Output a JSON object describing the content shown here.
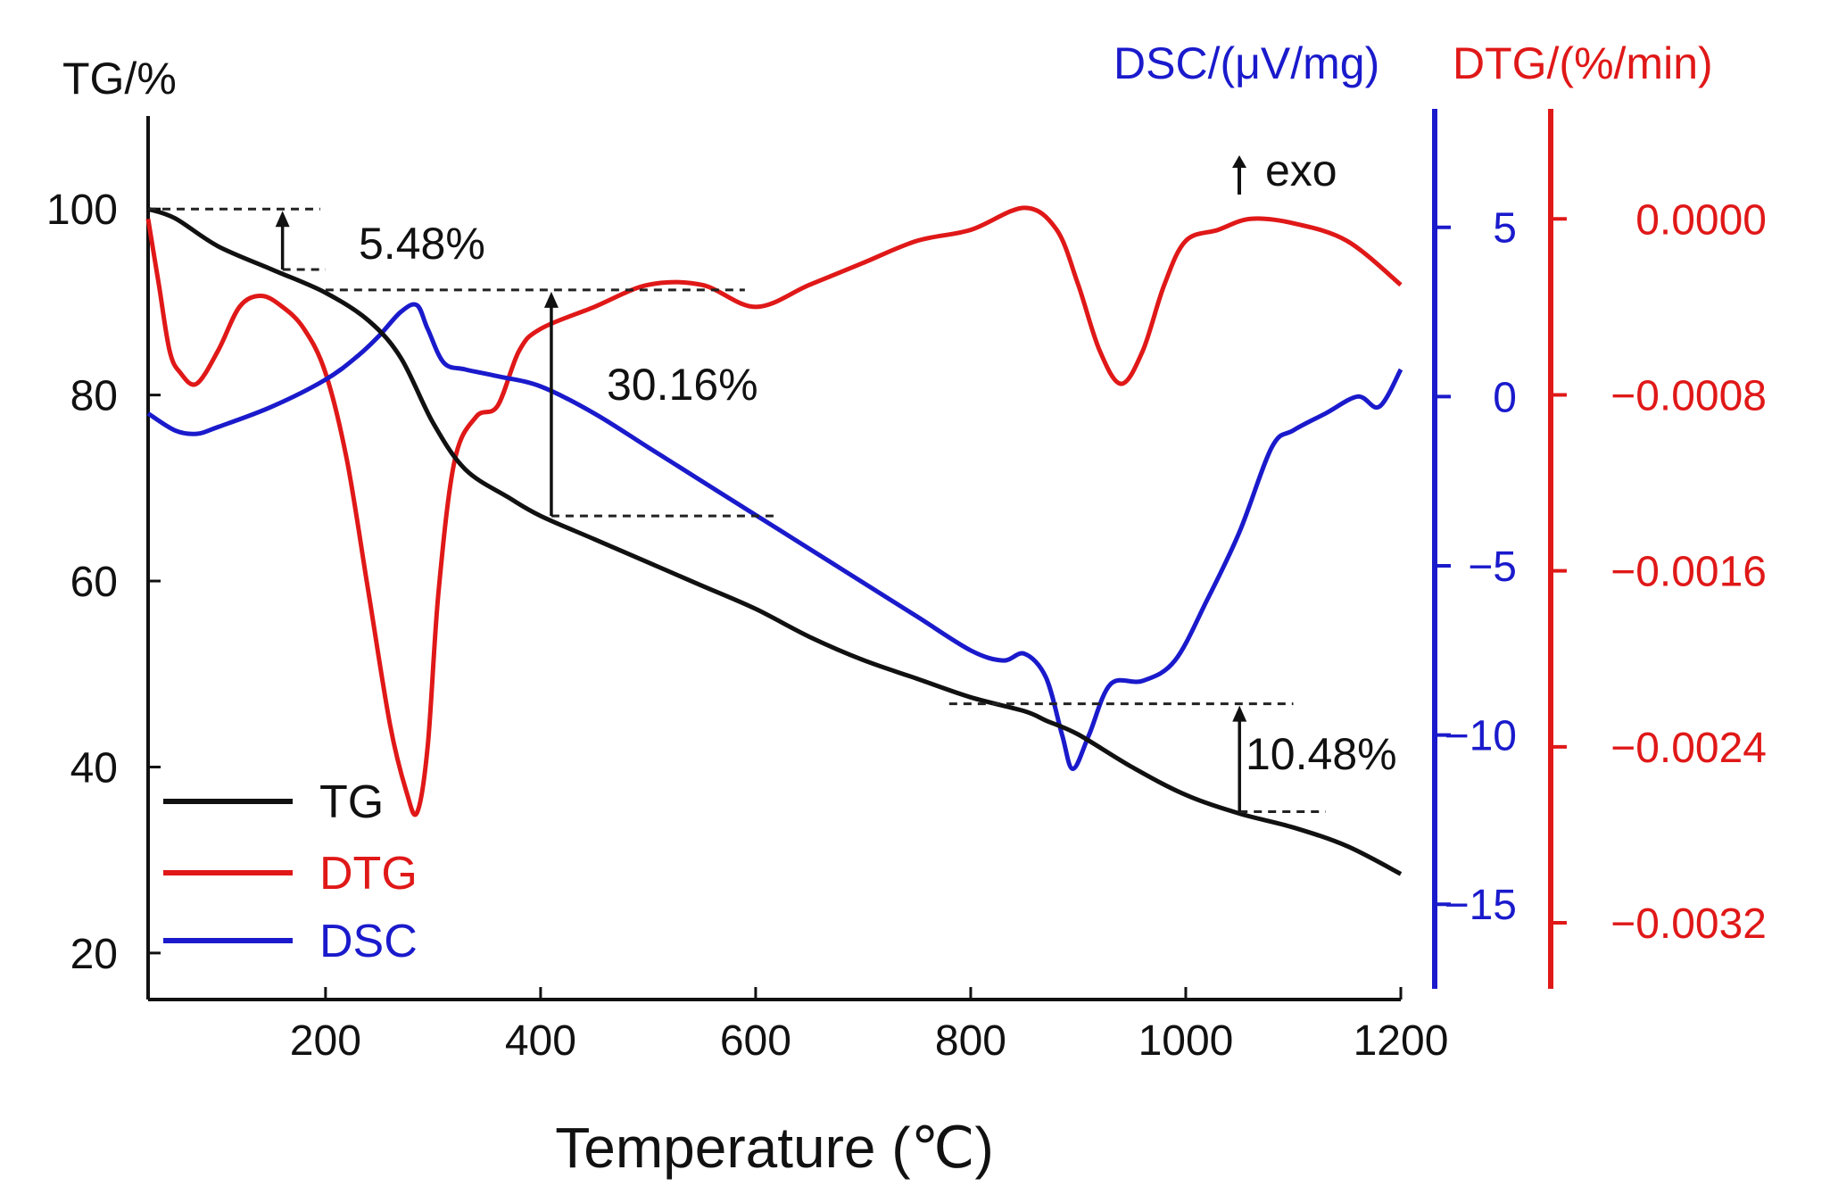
{
  "chart_data": {
    "type": "line",
    "xlabel": "Temperature (℃)",
    "xlim": [
      35,
      1200
    ],
    "x_ticks": [
      200,
      400,
      600,
      800,
      1000,
      1200
    ],
    "x_tick_labels": [
      "200",
      "400",
      "600",
      "800",
      "1000",
      "1200"
    ],
    "axes": {
      "tg": {
        "label": "TG/%",
        "range": [
          15,
          110
        ],
        "ticks": [
          20,
          40,
          60,
          80,
          100
        ],
        "tick_labels": [
          "20",
          "40",
          "60",
          "80",
          "100"
        ],
        "color": "#111111"
      },
      "dsc": {
        "label": "DSC/(μV/mg)",
        "range": [
          -17.5,
          8.5
        ],
        "ticks": [
          5,
          0,
          -5,
          -10,
          -15
        ],
        "tick_labels": [
          "5",
          "0",
          "-5",
          "-10",
          "-15"
        ],
        "color": "#1a1acc"
      },
      "dtg": {
        "label": "DTG/(%/min)",
        "range": [
          -0.0035,
          0.0005
        ],
        "ticks": [
          0.0,
          -0.0008,
          -0.0016,
          -0.0024,
          -0.0032
        ],
        "tick_labels": [
          "0.0000",
          "-0.0008",
          "-0.0016",
          "-0.0024",
          "-0.0032"
        ],
        "color": "#e01818"
      }
    },
    "series": [
      {
        "name": "TG",
        "axis": "tg",
        "color": "#111111",
        "x": [
          35,
          60,
          100,
          150,
          200,
          240,
          270,
          300,
          330,
          370,
          400,
          450,
          500,
          550,
          600,
          650,
          700,
          750,
          800,
          850,
          870,
          900,
          950,
          1000,
          1050,
          1100,
          1150,
          1200
        ],
        "y": [
          100,
          99,
          96,
          93.5,
          91,
          88,
          84,
          77,
          72,
          69,
          67,
          64.5,
          62,
          59.5,
          57,
          54,
          51.5,
          49.5,
          47.5,
          46,
          45,
          43.5,
          40,
          37,
          35,
          33.5,
          31.5,
          28.5
        ]
      },
      {
        "name": "DTG",
        "axis": "dtg",
        "color": "#e01818",
        "x": [
          35,
          45,
          55,
          65,
          80,
          100,
          120,
          140,
          160,
          180,
          200,
          220,
          240,
          260,
          275,
          285,
          295,
          305,
          320,
          340,
          360,
          380,
          400,
          450,
          500,
          550,
          600,
          650,
          700,
          750,
          800,
          850,
          880,
          900,
          920,
          940,
          960,
          980,
          1000,
          1030,
          1060,
          1100,
          1150,
          1200
        ],
        "y": [
          0,
          -0.0003,
          -0.0006,
          -0.0007,
          -0.00075,
          -0.0006,
          -0.0004,
          -0.00035,
          -0.0004,
          -0.0005,
          -0.0007,
          -0.0011,
          -0.0017,
          -0.0023,
          -0.0026,
          -0.0027,
          -0.0024,
          -0.0017,
          -0.0011,
          -0.0009,
          -0.00085,
          -0.0006,
          -0.0005,
          -0.0004,
          -0.0003,
          -0.0003,
          -0.0004,
          -0.0003,
          -0.0002,
          -0.0001,
          -5e-05,
          5e-05,
          -5e-05,
          -0.0003,
          -0.0006,
          -0.00075,
          -0.0006,
          -0.0003,
          -0.0001,
          -5e-05,
          0.0,
          -2e-05,
          -0.0001,
          -0.0003
        ]
      },
      {
        "name": "DSC",
        "axis": "dsc",
        "color": "#1a1acc",
        "x": [
          35,
          60,
          80,
          100,
          150,
          200,
          230,
          250,
          270,
          285,
          295,
          310,
          330,
          360,
          400,
          450,
          500,
          550,
          600,
          650,
          700,
          750,
          800,
          830,
          850,
          870,
          885,
          895,
          910,
          930,
          960,
          990,
          1020,
          1050,
          1080,
          1100,
          1130,
          1160,
          1180,
          1200
        ],
        "y": [
          -0.5,
          -1.0,
          -1.1,
          -0.9,
          -0.3,
          0.5,
          1.2,
          1.8,
          2.5,
          2.7,
          2.0,
          1.0,
          0.8,
          0.6,
          0.3,
          -0.5,
          -1.5,
          -2.5,
          -3.5,
          -4.5,
          -5.5,
          -6.5,
          -7.5,
          -7.8,
          -7.6,
          -8.3,
          -10.0,
          -11.0,
          -10.0,
          -8.5,
          -8.4,
          -7.8,
          -6.0,
          -4.0,
          -1.5,
          -1.0,
          -0.5,
          0.0,
          -0.3,
          0.8
        ]
      }
    ],
    "legend": {
      "position": "bottom-left",
      "entries": [
        {
          "name": "TG",
          "color": "#111111"
        },
        {
          "name": "DTG",
          "color": "#e01818"
        },
        {
          "name": "DSC",
          "color": "#1a1acc"
        }
      ]
    },
    "annotations": [
      {
        "text": "5.48%",
        "x": 160,
        "from": 93.5,
        "to": 100,
        "ref_x": [
          35,
          195
        ],
        "ref2_x": [
          160,
          200
        ]
      },
      {
        "text": "30.16%",
        "x": 410,
        "from": 67,
        "to": 91.3,
        "ref_x": [
          200,
          590
        ],
        "ref2_x": [
          410,
          620
        ]
      },
      {
        "text": "10.48%",
        "x": 1050,
        "from": 35.2,
        "to": 46.8,
        "ref_x": [
          780,
          1100
        ],
        "ref2_x": [
          1050,
          1130
        ]
      },
      {
        "text": "exo",
        "marker": "up-arrow"
      }
    ]
  }
}
